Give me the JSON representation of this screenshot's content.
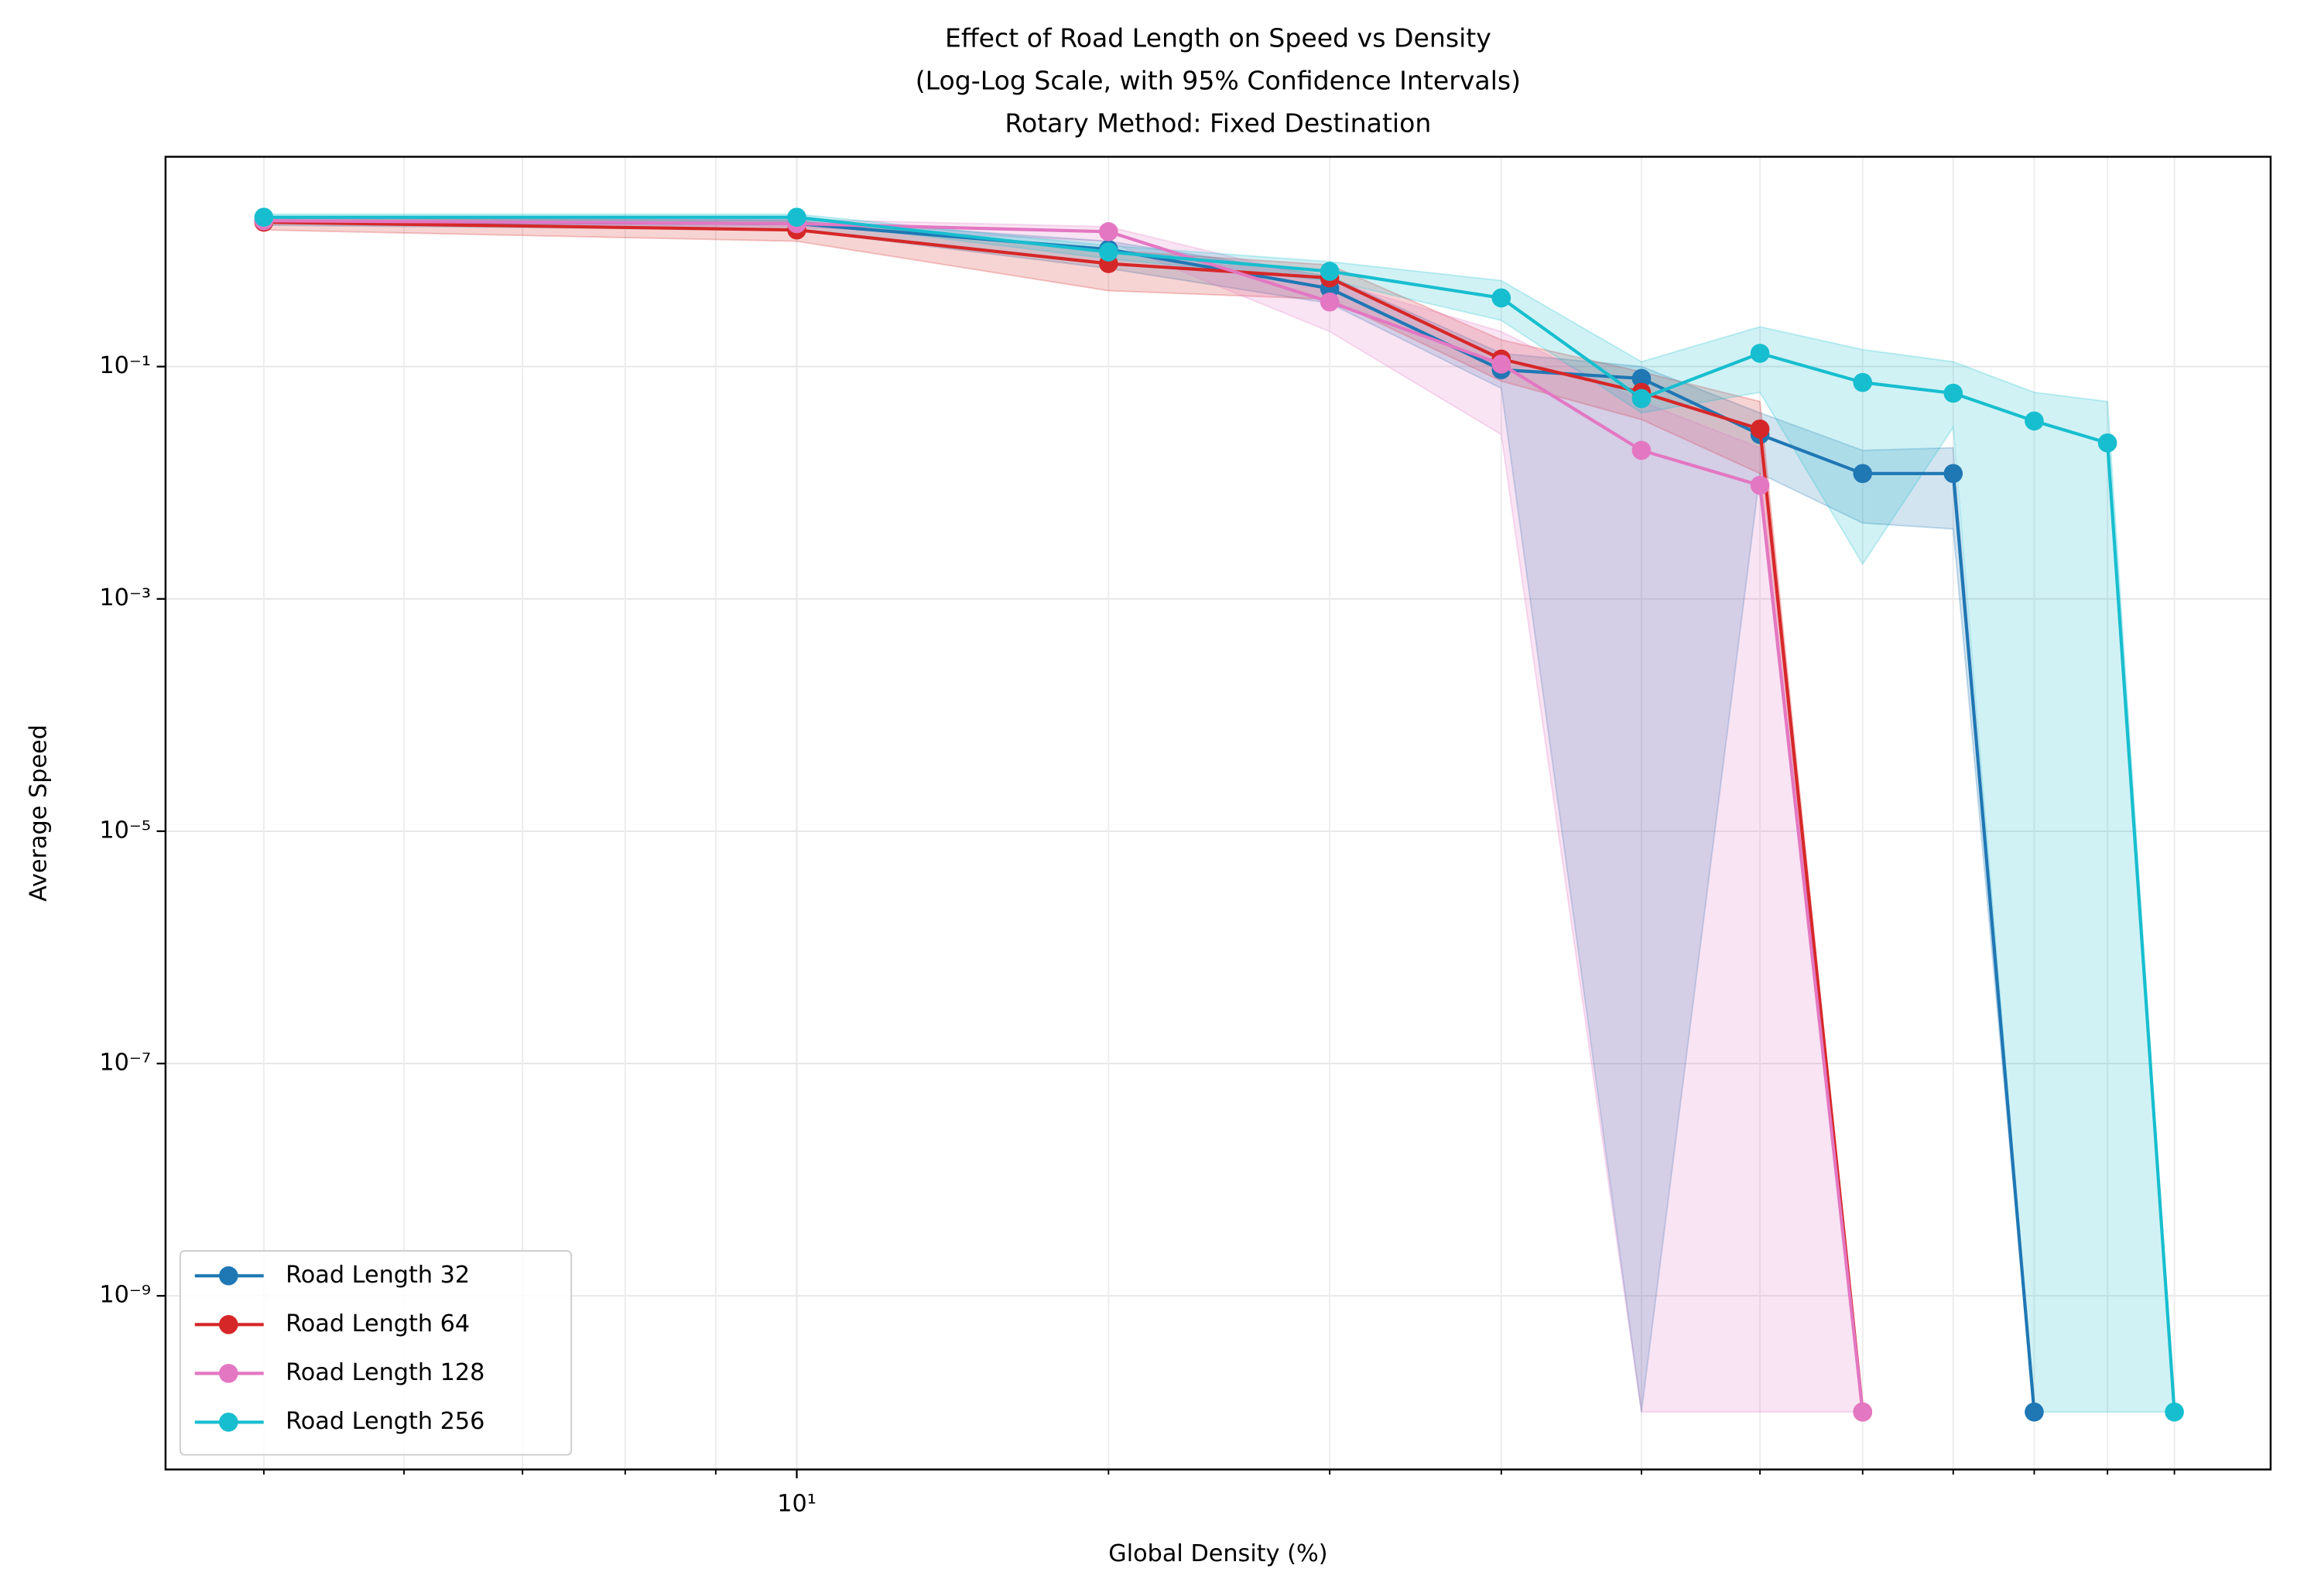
{
  "chart_data": {
    "type": "line",
    "title": [
      "Effect of Road Length on Speed vs Density",
      "(Log-Log Scale, with 95% Confidence Intervals)",
      "Rotary Method: Fixed Destination"
    ],
    "x_label": "Global Density (%)",
    "y_label": "Average Speed",
    "log_x": true,
    "log_y": true,
    "grid": true,
    "legend": "lower left",
    "xlim": [
      4.4,
      68
    ],
    "ylim": [
      3.2e-11,
      6.4
    ],
    "xticks": [
      {
        "value": 10,
        "label": "10¹"
      }
    ],
    "xminor": [
      5,
      6,
      7,
      8,
      9,
      15,
      20,
      25,
      30,
      35,
      40,
      45,
      50,
      55,
      60
    ],
    "yticks": [
      {
        "value": 1e-09,
        "label": "10⁻⁹"
      },
      {
        "value": 1e-07,
        "label": "10⁻⁷"
      },
      {
        "value": 1e-05,
        "label": "10⁻⁵"
      },
      {
        "value": 0.001,
        "label": "10⁻³"
      },
      {
        "value": 0.1,
        "label": "10⁻¹"
      }
    ],
    "series": [
      {
        "name": "Road Length 32",
        "color": "#1f77b4",
        "x": [
          5,
          10,
          15,
          20,
          25,
          30,
          35,
          40,
          45,
          50
        ],
        "values": [
          1.78,
          1.7,
          1.02,
          0.47,
          0.094,
          0.079,
          0.026,
          0.012,
          0.012,
          1e-10
        ],
        "lower": [
          1.65,
          1.5,
          0.7,
          0.35,
          0.065,
          1e-10,
          0.012,
          0.0045,
          0.004,
          1e-10
        ],
        "upper": [
          1.9,
          1.85,
          1.2,
          0.6,
          0.13,
          0.1,
          0.04,
          0.019,
          0.02,
          1e-10
        ]
      },
      {
        "name": "Road Length 64",
        "color": "#d62728",
        "x": [
          5,
          10,
          15,
          20,
          25,
          30,
          35,
          40
        ],
        "values": [
          1.75,
          1.5,
          0.77,
          0.58,
          0.116,
          0.06,
          0.029,
          1e-10
        ],
        "lower": [
          1.5,
          1.2,
          0.45,
          0.38,
          0.075,
          0.035,
          0.012,
          1e-10
        ],
        "upper": [
          1.9,
          1.8,
          1.0,
          0.75,
          0.17,
          0.09,
          0.05,
          1e-10
        ]
      },
      {
        "name": "Road Length 128",
        "color": "#e377c2",
        "x": [
          5,
          10,
          15,
          20,
          25,
          30,
          35,
          40
        ],
        "values": [
          1.8,
          1.7,
          1.45,
          0.36,
          0.105,
          0.019,
          0.0095,
          1e-10
        ],
        "lower": [
          1.7,
          1.6,
          1.2,
          0.2,
          0.026,
          1e-10,
          1e-10,
          1e-10
        ],
        "upper": [
          1.9,
          1.85,
          1.6,
          0.55,
          0.2,
          0.05,
          0.02,
          1e-10
        ]
      },
      {
        "name": "Road Length 256",
        "color": "#17becf",
        "x": [
          5,
          10,
          15,
          20,
          25,
          30,
          35,
          40,
          45,
          50,
          55,
          60
        ],
        "values": [
          1.93,
          1.93,
          0.97,
          0.66,
          0.39,
          0.053,
          0.13,
          0.073,
          0.059,
          0.034,
          0.022,
          1e-10
        ],
        "lower": [
          1.8,
          1.8,
          0.85,
          0.55,
          0.25,
          0.04,
          0.06,
          0.002,
          0.03,
          1e-10,
          1e-10,
          1e-10
        ],
        "upper": [
          2.05,
          2.05,
          1.1,
          0.8,
          0.55,
          0.11,
          0.22,
          0.14,
          0.11,
          0.06,
          0.05,
          1e-10
        ]
      }
    ]
  }
}
